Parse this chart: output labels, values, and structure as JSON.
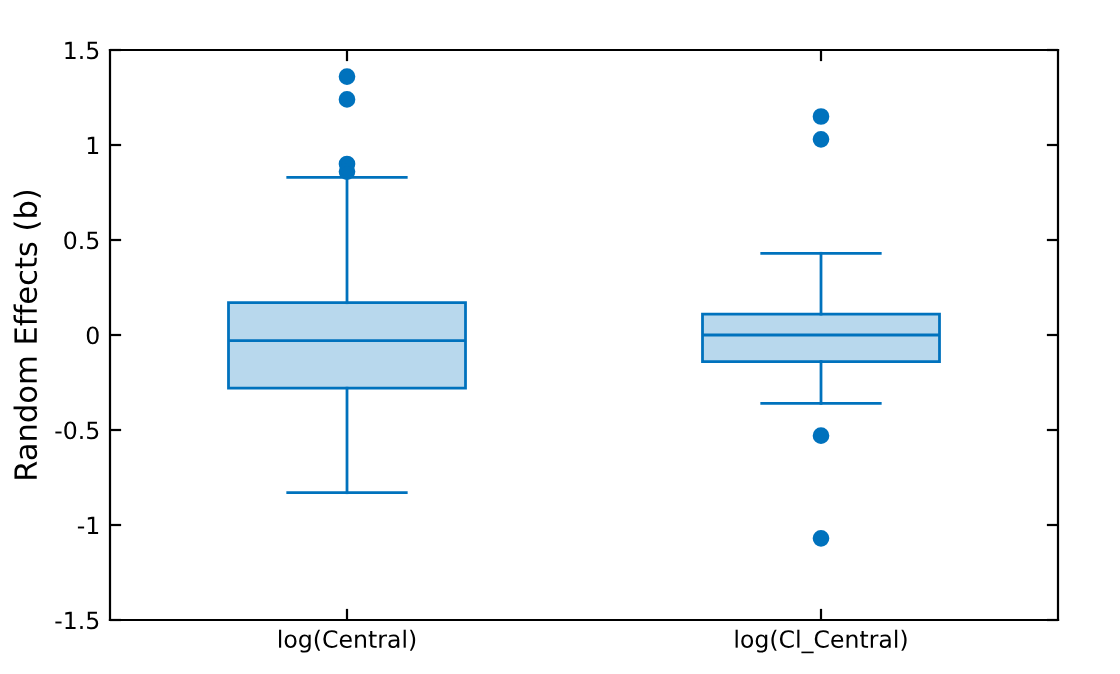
{
  "chart_data": {
    "type": "box",
    "ylabel": "Random Effects (b)",
    "categories": [
      "log(Central)",
      "log(Cl_Central)"
    ],
    "color": "#0072bd",
    "boxes": [
      {
        "low": -0.83,
        "q1": -0.28,
        "median": -0.03,
        "q3": 0.17,
        "high": 0.83,
        "outliers": [
          1.36,
          1.24,
          0.9,
          0.86
        ]
      },
      {
        "low": -0.36,
        "q1": -0.14,
        "median": 0,
        "q3": 0.11,
        "high": 0.43,
        "outliers": [
          1.15,
          1.03,
          -0.53,
          -1.07
        ]
      }
    ],
    "ylim": [
      -1.5,
      1.5
    ],
    "yticks": [
      -1.5,
      -1,
      -0.5,
      0,
      0.5,
      1,
      1.5
    ],
    "grid": false,
    "legend": false
  }
}
